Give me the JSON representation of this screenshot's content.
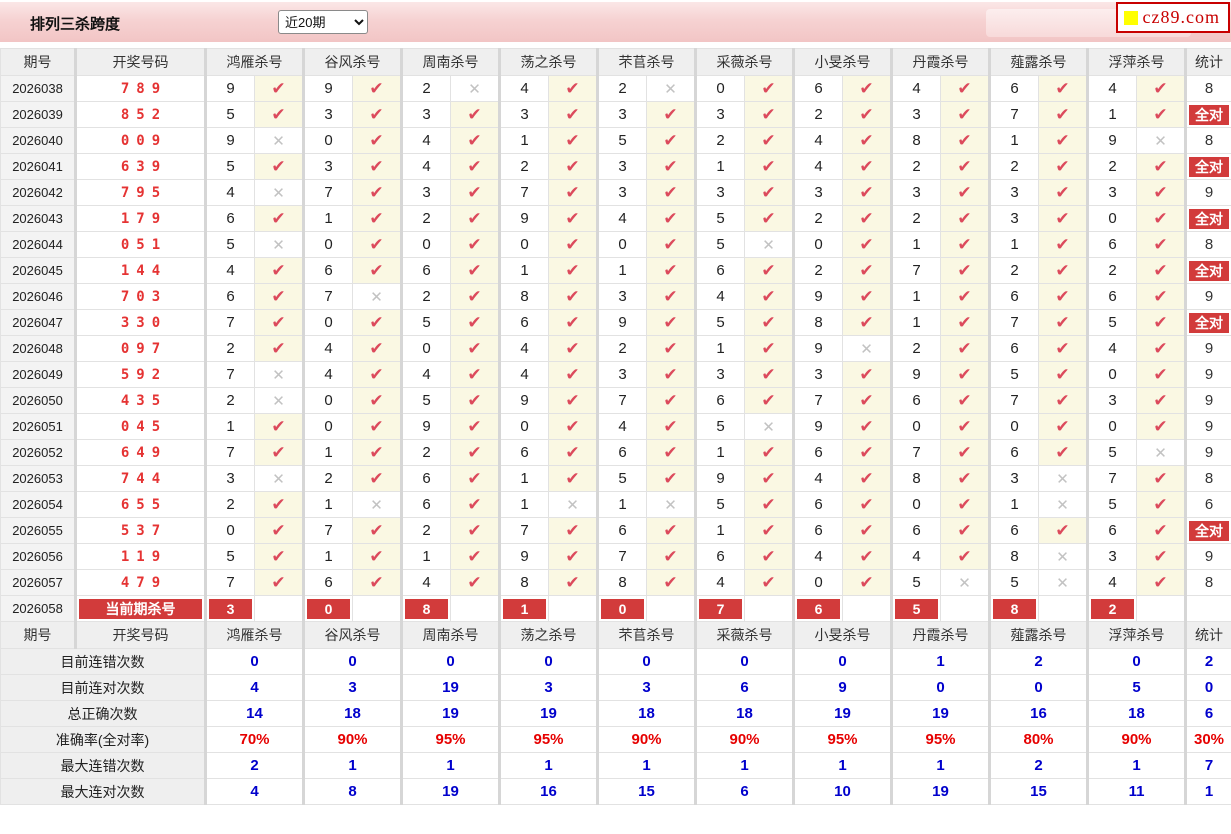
{
  "title": "排列三杀跨度",
  "period_select": {
    "value": "近20期"
  },
  "logo": {
    "text": "cz89.com",
    "square_color": "#FFFF00"
  },
  "icons": {
    "check": "✔",
    "cross": "✕",
    "chevron_down": "∨"
  },
  "colors": {
    "accent_red": "#D23B3B",
    "check_red": "#DC4A5C",
    "cross_gray": "#C2C2C2",
    "value_blue": "#0000CC",
    "value_red": "#E60000",
    "draw_number_red": "#E53333",
    "banner_pink": "#F6D2D2",
    "header_gray": "#EFEFEF"
  },
  "table": {
    "period_header": "期号",
    "code_header": "开奖号码",
    "stat_header": "统计",
    "all_right_label": "全对",
    "kill_headers": [
      "鸿雁杀号",
      "谷风杀号",
      "周南杀号",
      "荡之杀号",
      "芣苢杀号",
      "采薇杀号",
      "小旻杀号",
      "丹霞杀号",
      "薤露杀号",
      "浮萍杀号"
    ],
    "rows": [
      {
        "period": "2026038",
        "code": "789",
        "kills": [
          [
            9,
            1
          ],
          [
            9,
            1
          ],
          [
            2,
            0
          ],
          [
            4,
            1
          ],
          [
            2,
            0
          ],
          [
            0,
            1
          ],
          [
            6,
            1
          ],
          [
            4,
            1
          ],
          [
            6,
            1
          ],
          [
            4,
            1
          ]
        ],
        "stat": "8"
      },
      {
        "period": "2026039",
        "code": "852",
        "kills": [
          [
            5,
            1
          ],
          [
            3,
            1
          ],
          [
            3,
            1
          ],
          [
            3,
            1
          ],
          [
            3,
            1
          ],
          [
            3,
            1
          ],
          [
            2,
            1
          ],
          [
            3,
            1
          ],
          [
            7,
            1
          ],
          [
            1,
            1
          ]
        ],
        "stat": "全对"
      },
      {
        "period": "2026040",
        "code": "009",
        "kills": [
          [
            9,
            0
          ],
          [
            0,
            1
          ],
          [
            4,
            1
          ],
          [
            1,
            1
          ],
          [
            5,
            1
          ],
          [
            2,
            1
          ],
          [
            4,
            1
          ],
          [
            8,
            1
          ],
          [
            1,
            1
          ],
          [
            9,
            0
          ]
        ],
        "stat": "8"
      },
      {
        "period": "2026041",
        "code": "639",
        "kills": [
          [
            5,
            1
          ],
          [
            3,
            1
          ],
          [
            4,
            1
          ],
          [
            2,
            1
          ],
          [
            3,
            1
          ],
          [
            1,
            1
          ],
          [
            4,
            1
          ],
          [
            2,
            1
          ],
          [
            2,
            1
          ],
          [
            2,
            1
          ]
        ],
        "stat": "全对"
      },
      {
        "period": "2026042",
        "code": "795",
        "kills": [
          [
            4,
            0
          ],
          [
            7,
            1
          ],
          [
            3,
            1
          ],
          [
            7,
            1
          ],
          [
            3,
            1
          ],
          [
            3,
            1
          ],
          [
            3,
            1
          ],
          [
            3,
            1
          ],
          [
            3,
            1
          ],
          [
            3,
            1
          ]
        ],
        "stat": "9"
      },
      {
        "period": "2026043",
        "code": "179",
        "kills": [
          [
            6,
            1
          ],
          [
            1,
            1
          ],
          [
            2,
            1
          ],
          [
            9,
            1
          ],
          [
            4,
            1
          ],
          [
            5,
            1
          ],
          [
            2,
            1
          ],
          [
            2,
            1
          ],
          [
            3,
            1
          ],
          [
            0,
            1
          ]
        ],
        "stat": "全对"
      },
      {
        "period": "2026044",
        "code": "051",
        "kills": [
          [
            5,
            0
          ],
          [
            0,
            1
          ],
          [
            0,
            1
          ],
          [
            0,
            1
          ],
          [
            0,
            1
          ],
          [
            5,
            0
          ],
          [
            0,
            1
          ],
          [
            1,
            1
          ],
          [
            1,
            1
          ],
          [
            6,
            1
          ]
        ],
        "stat": "8"
      },
      {
        "period": "2026045",
        "code": "144",
        "kills": [
          [
            4,
            1
          ],
          [
            6,
            1
          ],
          [
            6,
            1
          ],
          [
            1,
            1
          ],
          [
            1,
            1
          ],
          [
            6,
            1
          ],
          [
            2,
            1
          ],
          [
            7,
            1
          ],
          [
            2,
            1
          ],
          [
            2,
            1
          ]
        ],
        "stat": "全对"
      },
      {
        "period": "2026046",
        "code": "703",
        "kills": [
          [
            6,
            1
          ],
          [
            7,
            0
          ],
          [
            2,
            1
          ],
          [
            8,
            1
          ],
          [
            3,
            1
          ],
          [
            4,
            1
          ],
          [
            9,
            1
          ],
          [
            1,
            1
          ],
          [
            6,
            1
          ],
          [
            6,
            1
          ]
        ],
        "stat": "9"
      },
      {
        "period": "2026047",
        "code": "330",
        "kills": [
          [
            7,
            1
          ],
          [
            0,
            1
          ],
          [
            5,
            1
          ],
          [
            6,
            1
          ],
          [
            9,
            1
          ],
          [
            5,
            1
          ],
          [
            8,
            1
          ],
          [
            1,
            1
          ],
          [
            7,
            1
          ],
          [
            5,
            1
          ]
        ],
        "stat": "全对"
      },
      {
        "period": "2026048",
        "code": "097",
        "kills": [
          [
            2,
            1
          ],
          [
            4,
            1
          ],
          [
            0,
            1
          ],
          [
            4,
            1
          ],
          [
            2,
            1
          ],
          [
            1,
            1
          ],
          [
            9,
            0
          ],
          [
            2,
            1
          ],
          [
            6,
            1
          ],
          [
            4,
            1
          ]
        ],
        "stat": "9"
      },
      {
        "period": "2026049",
        "code": "592",
        "kills": [
          [
            7,
            0
          ],
          [
            4,
            1
          ],
          [
            4,
            1
          ],
          [
            4,
            1
          ],
          [
            3,
            1
          ],
          [
            3,
            1
          ],
          [
            3,
            1
          ],
          [
            9,
            1
          ],
          [
            5,
            1
          ],
          [
            0,
            1
          ]
        ],
        "stat": "9"
      },
      {
        "period": "2026050",
        "code": "435",
        "kills": [
          [
            2,
            0
          ],
          [
            0,
            1
          ],
          [
            5,
            1
          ],
          [
            9,
            1
          ],
          [
            7,
            1
          ],
          [
            6,
            1
          ],
          [
            7,
            1
          ],
          [
            6,
            1
          ],
          [
            7,
            1
          ],
          [
            3,
            1
          ]
        ],
        "stat": "9"
      },
      {
        "period": "2026051",
        "code": "045",
        "kills": [
          [
            1,
            1
          ],
          [
            0,
            1
          ],
          [
            9,
            1
          ],
          [
            0,
            1
          ],
          [
            4,
            1
          ],
          [
            5,
            0
          ],
          [
            9,
            1
          ],
          [
            0,
            1
          ],
          [
            0,
            1
          ],
          [
            0,
            1
          ]
        ],
        "stat": "9"
      },
      {
        "period": "2026052",
        "code": "649",
        "kills": [
          [
            7,
            1
          ],
          [
            1,
            1
          ],
          [
            2,
            1
          ],
          [
            6,
            1
          ],
          [
            6,
            1
          ],
          [
            1,
            1
          ],
          [
            6,
            1
          ],
          [
            7,
            1
          ],
          [
            6,
            1
          ],
          [
            5,
            0
          ]
        ],
        "stat": "9"
      },
      {
        "period": "2026053",
        "code": "744",
        "kills": [
          [
            3,
            0
          ],
          [
            2,
            1
          ],
          [
            6,
            1
          ],
          [
            1,
            1
          ],
          [
            5,
            1
          ],
          [
            9,
            1
          ],
          [
            4,
            1
          ],
          [
            8,
            1
          ],
          [
            3,
            0
          ],
          [
            7,
            1
          ]
        ],
        "stat": "8"
      },
      {
        "period": "2026054",
        "code": "655",
        "kills": [
          [
            2,
            1
          ],
          [
            1,
            0
          ],
          [
            6,
            1
          ],
          [
            1,
            0
          ],
          [
            1,
            0
          ],
          [
            5,
            1
          ],
          [
            6,
            1
          ],
          [
            0,
            1
          ],
          [
            1,
            0
          ],
          [
            5,
            1
          ]
        ],
        "stat": "6"
      },
      {
        "period": "2026055",
        "code": "537",
        "kills": [
          [
            0,
            1
          ],
          [
            7,
            1
          ],
          [
            2,
            1
          ],
          [
            7,
            1
          ],
          [
            6,
            1
          ],
          [
            1,
            1
          ],
          [
            6,
            1
          ],
          [
            6,
            1
          ],
          [
            6,
            1
          ],
          [
            6,
            1
          ]
        ],
        "stat": "全对"
      },
      {
        "period": "2026056",
        "code": "119",
        "kills": [
          [
            5,
            1
          ],
          [
            1,
            1
          ],
          [
            1,
            1
          ],
          [
            9,
            1
          ],
          [
            7,
            1
          ],
          [
            6,
            1
          ],
          [
            4,
            1
          ],
          [
            4,
            1
          ],
          [
            8,
            0
          ],
          [
            3,
            1
          ]
        ],
        "stat": "9"
      },
      {
        "period": "2026057",
        "code": "479",
        "kills": [
          [
            7,
            1
          ],
          [
            6,
            1
          ],
          [
            4,
            1
          ],
          [
            8,
            1
          ],
          [
            8,
            1
          ],
          [
            4,
            1
          ],
          [
            0,
            1
          ],
          [
            5,
            0
          ],
          [
            5,
            0
          ],
          [
            4,
            1
          ]
        ],
        "stat": "8"
      }
    ],
    "current_row": {
      "period": "2026058",
      "label": "当前期杀号",
      "kills": [
        3,
        0,
        8,
        1,
        0,
        7,
        6,
        5,
        8,
        2
      ],
      "stat": ""
    },
    "summary_rows": [
      {
        "label": "目前连错次数",
        "style": "blue",
        "values": [
          "0",
          "0",
          "0",
          "0",
          "0",
          "0",
          "0",
          "1",
          "2",
          "0"
        ],
        "stat": "2"
      },
      {
        "label": "目前连对次数",
        "style": "blue",
        "values": [
          "4",
          "3",
          "19",
          "3",
          "3",
          "6",
          "9",
          "0",
          "0",
          "5"
        ],
        "stat": "0"
      },
      {
        "label": "总正确次数",
        "style": "blue",
        "values": [
          "14",
          "18",
          "19",
          "19",
          "18",
          "18",
          "19",
          "19",
          "16",
          "18"
        ],
        "stat": "6"
      },
      {
        "label": "准确率(全对率)",
        "style": "red",
        "values": [
          "70%",
          "90%",
          "95%",
          "95%",
          "90%",
          "90%",
          "95%",
          "95%",
          "80%",
          "90%"
        ],
        "stat": "30%"
      },
      {
        "label": "最大连错次数",
        "style": "blue",
        "values": [
          "2",
          "1",
          "1",
          "1",
          "1",
          "1",
          "1",
          "1",
          "2",
          "1"
        ],
        "stat": "7"
      },
      {
        "label": "最大连对次数",
        "style": "blue",
        "values": [
          "4",
          "8",
          "19",
          "16",
          "15",
          "6",
          "10",
          "19",
          "15",
          "11"
        ],
        "stat": "1"
      }
    ]
  }
}
